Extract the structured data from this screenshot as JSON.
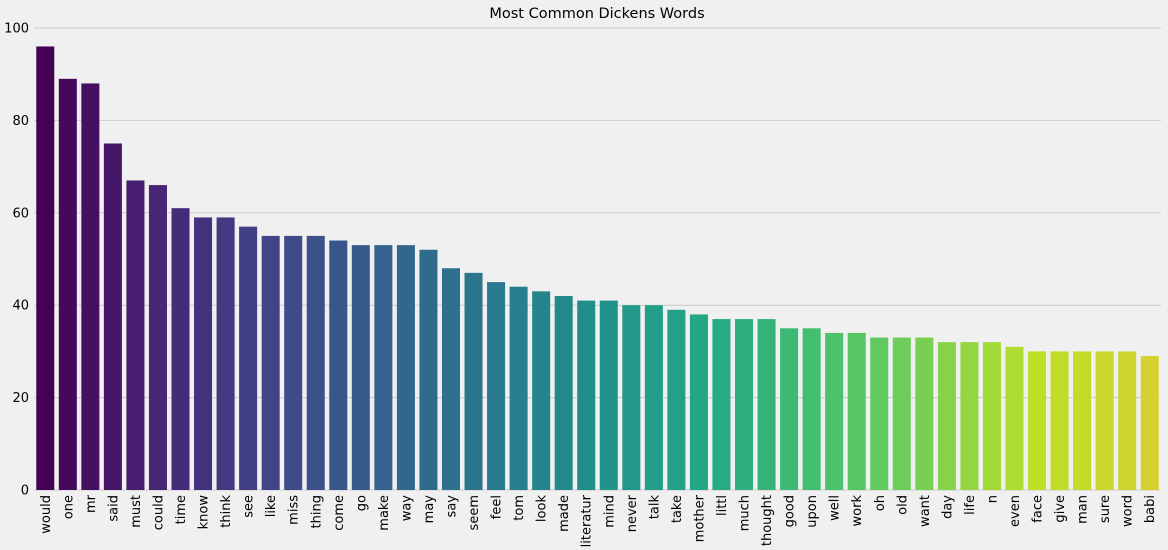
{
  "chart_data": {
    "type": "bar",
    "title": "Most Common Dickens Words",
    "xlabel": "",
    "ylabel": "",
    "ylim": [
      0,
      100
    ],
    "yticks": [
      0,
      20,
      40,
      60,
      80,
      100
    ],
    "grid": "horizontal",
    "palette": "viridis",
    "color_start": "#440154",
    "color_end": "#d4d131",
    "categories": [
      "would",
      "one",
      "mr",
      "said",
      "must",
      "could",
      "time",
      "know",
      "think",
      "see",
      "like",
      "miss",
      "thing",
      "come",
      "go",
      "make",
      "way",
      "may",
      "say",
      "seem",
      "feel",
      "tom",
      "look",
      "made",
      "literatur",
      "mind",
      "never",
      "talk",
      "take",
      "mother",
      "littl",
      "much",
      "thought",
      "good",
      "upon",
      "well",
      "work",
      "oh",
      "old",
      "want",
      "day",
      "life",
      "n",
      "even",
      "face",
      "give",
      "man",
      "sure",
      "word",
      "babi"
    ],
    "values": [
      96,
      89,
      88,
      75,
      67,
      66,
      61,
      59,
      59,
      57,
      55,
      55,
      55,
      54,
      53,
      53,
      53,
      52,
      48,
      47,
      45,
      44,
      43,
      42,
      41,
      41,
      40,
      40,
      39,
      38,
      37,
      37,
      37,
      35,
      35,
      34,
      34,
      33,
      33,
      33,
      32,
      32,
      32,
      31,
      30,
      30,
      30,
      30,
      30,
      29
    ]
  }
}
